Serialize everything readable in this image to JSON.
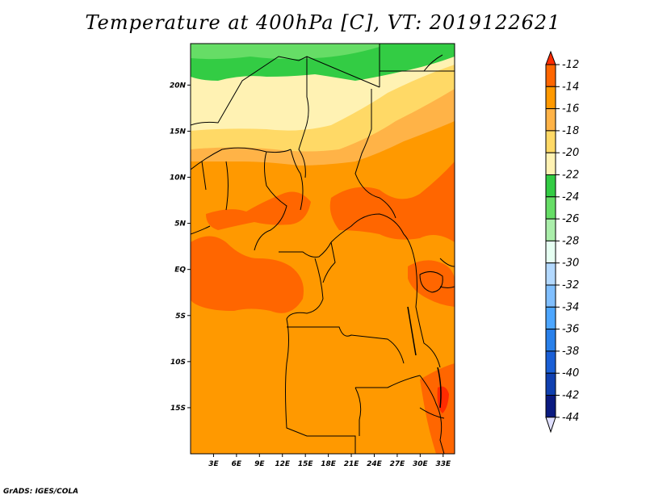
{
  "title": "Temperature at 400hPa [C], VT: 2019122621",
  "credit": "GrADS: IGES/COLA",
  "chart_data": {
    "type": "heatmap",
    "title": "Temperature at 400hPa [C], VT: 2019122621",
    "unit": "C",
    "xlim": [
      0,
      34.5
    ],
    "ylim": [
      -20,
      24.5
    ],
    "x_ticks": [
      3,
      6,
      9,
      12,
      15,
      18,
      21,
      24,
      27,
      30,
      33
    ],
    "x_tick_labels": [
      "3E",
      "6E",
      "9E",
      "12E",
      "15E",
      "18E",
      "21E",
      "24E",
      "27E",
      "30E",
      "33E"
    ],
    "y_ticks": [
      20,
      15,
      10,
      5,
      0,
      -5,
      -10,
      -15
    ],
    "y_tick_labels": [
      "20N",
      "15N",
      "10N",
      "5N",
      "EQ",
      "5S",
      "10S",
      "15S"
    ],
    "colorbar": {
      "labels": [
        "-12",
        "-14",
        "-16",
        "-18",
        "-20",
        "-22",
        "-24",
        "-26",
        "-28",
        "-30",
        "-32",
        "-34",
        "-36",
        "-38",
        "-40",
        "-42",
        "-44"
      ],
      "colors": [
        "#ff2b00",
        "#ff6600",
        "#ff9900",
        "#ffb347",
        "#ffd966",
        "#fff2b3",
        "#33cc44",
        "#66dd66",
        "#aaeeaa",
        "#e6fff2",
        "#b3d9ff",
        "#80bfff",
        "#4da6ff",
        "#2980ea",
        "#1a5fd6",
        "#1040b0",
        "#0a1a80",
        "#e0e0ff"
      ]
    }
  }
}
